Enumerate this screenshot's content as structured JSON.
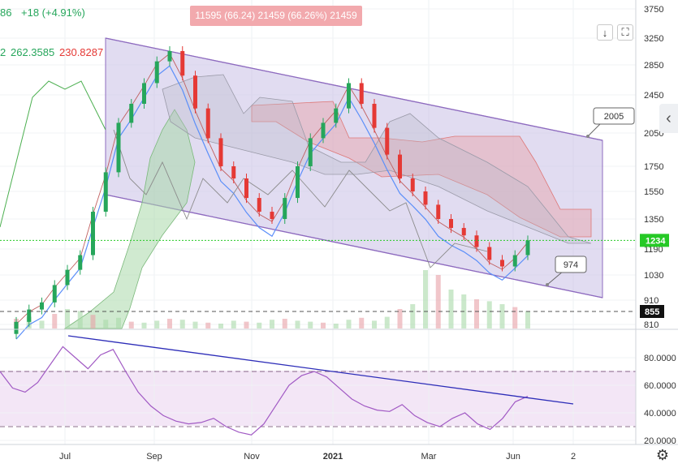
{
  "header": {
    "change_abs": "86",
    "change_rel": "+18 (+4.91%)",
    "indicator_prefix": "2",
    "indicator_value_1": "262.3585",
    "indicator_value_2": "230.8287",
    "tooltip_text": "11595 (66.24) 21459 (66.26%) 21459"
  },
  "toolbar": {
    "download_icon": "arrow-down-icon",
    "fullscreen_icon": "fullscreen-icon",
    "side_panel_icon": "chevron-left-icon",
    "settings_icon": "gear-icon"
  },
  "colors": {
    "channel_fill": "#c9bfe6",
    "channel_line": "#8e6bbf",
    "cloud_red": "#e8a0a6",
    "cloud_green": "#a9d8a9",
    "candle_up": "#26a65b",
    "candle_down": "#e53935",
    "ma_blue": "#5b8ff9",
    "price_line": "#26c926",
    "rsi_line": "#a15ac4",
    "rsi_band": "#f3e6f6",
    "trendline": "#2d2db8"
  },
  "chart_data": [
    {
      "type": "candlestick",
      "title": "",
      "y_axis_ticks": [
        3750,
        3250,
        2850,
        2450,
        2050,
        1750,
        1550,
        1350,
        1190,
        1030,
        910,
        810
      ],
      "x_axis_ticks": [
        "Jul",
        "Sep",
        "Nov",
        "2021",
        "Mar",
        "Jun",
        "2"
      ],
      "last_price": 1234,
      "price_label": "1234",
      "support_level": 855,
      "support_label": "855",
      "channel_callouts": [
        "2005",
        "974"
      ],
      "closes": [
        820,
        870,
        900,
        980,
        1060,
        1150,
        1400,
        1700,
        2150,
        2350,
        2600,
        2900,
        3050,
        2700,
        2300,
        2000,
        1750,
        1650,
        1500,
        1400,
        1350,
        1500,
        1750,
        2000,
        2150,
        2300,
        2600,
        2350,
        2100,
        1850,
        1650,
        1550,
        1450,
        1350,
        1300,
        1260,
        1200,
        1120,
        1080,
        1150,
        1234
      ]
    },
    {
      "type": "line",
      "title": "",
      "y_axis_ticks": [
        80.0,
        60.0,
        40.0,
        20.0
      ],
      "y_axis_labels": [
        "80.0000",
        "60.0000",
        "40.0000",
        "20.0000"
      ],
      "upper_band": 70,
      "lower_band": 30,
      "values": [
        70,
        58,
        55,
        62,
        75,
        88,
        80,
        72,
        82,
        86,
        70,
        55,
        45,
        38,
        34,
        32,
        33,
        36,
        30,
        26,
        24,
        32,
        46,
        60,
        67,
        70,
        66,
        58,
        50,
        45,
        42,
        41,
        46,
        38,
        33,
        30,
        36,
        40,
        32,
        28,
        36,
        48,
        52
      ]
    }
  ]
}
